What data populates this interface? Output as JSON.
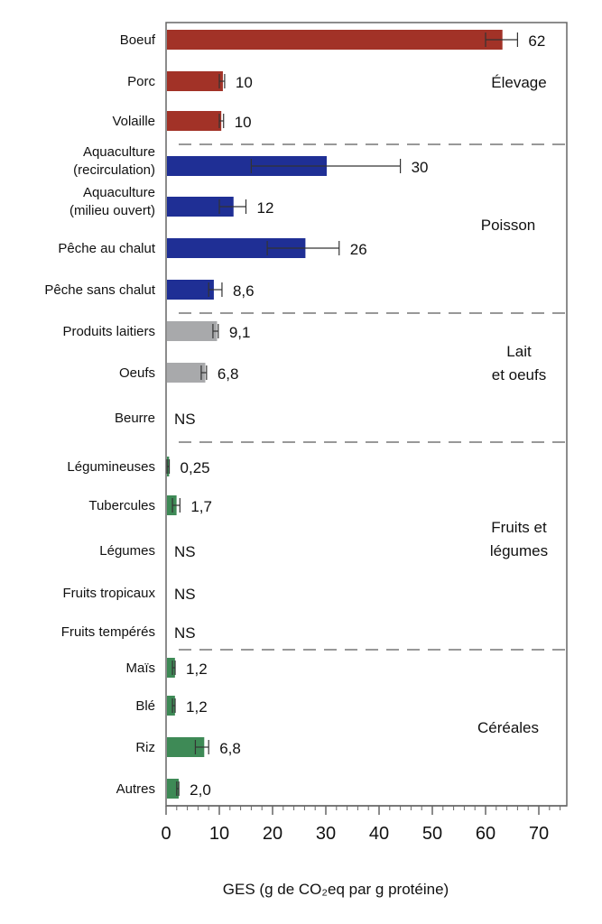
{
  "chart_data": {
    "type": "bar",
    "orientation": "horizontal",
    "title": "",
    "xlabel": "GES (g de CO₂eq par g protéine)",
    "ylabel": "",
    "xlim": [
      0,
      75
    ],
    "xticks": [
      0,
      10,
      20,
      30,
      40,
      50,
      60,
      70
    ],
    "grid": false,
    "colors": {
      "Élevage": "#a23227",
      "Poisson": "#1f2f95",
      "Lait et oeufs": "#a8a9ab",
      "Fruits et légumes": "#3e8a56",
      "Céréales": "#3e8a56"
    },
    "groups": [
      {
        "name": "Élevage",
        "label_lines": [
          "Élevage"
        ]
      },
      {
        "name": "Poisson",
        "label_lines": [
          "Poisson"
        ]
      },
      {
        "name": "Lait et oeufs",
        "label_lines": [
          "Lait",
          "et oeufs"
        ]
      },
      {
        "name": "Fruits et légumes",
        "label_lines": [
          "Fruits et",
          "légumes"
        ]
      },
      {
        "name": "Céréales",
        "label_lines": [
          "Céréales"
        ]
      }
    ],
    "categories": [
      {
        "label_lines": [
          "Boeuf"
        ],
        "group": "Élevage",
        "value": 62,
        "bar": 63,
        "err": [
          60,
          66
        ],
        "label": "62"
      },
      {
        "label_lines": [
          "Porc"
        ],
        "group": "Élevage",
        "value": 10,
        "bar": 10.5,
        "err": [
          10,
          11
        ],
        "label": "10"
      },
      {
        "label_lines": [
          "Volaille"
        ],
        "group": "Élevage",
        "value": 10,
        "bar": 10.2,
        "err": [
          10,
          10.8
        ],
        "label": "10"
      },
      {
        "label_lines": [
          "Aquaculture",
          "(recirculation)"
        ],
        "group": "Poisson",
        "value": 30,
        "bar": 30,
        "err": [
          16,
          44
        ],
        "label": "30"
      },
      {
        "label_lines": [
          "Aquaculture",
          "(milieu ouvert)"
        ],
        "group": "Poisson",
        "value": 12,
        "bar": 12.5,
        "err": [
          10,
          15
        ],
        "label": "12"
      },
      {
        "label_lines": [
          "Pêche au chalut"
        ],
        "group": "Poisson",
        "value": 26,
        "bar": 26,
        "err": [
          19,
          32.5
        ],
        "label": "26"
      },
      {
        "label_lines": [
          "Pêche sans chalut"
        ],
        "group": "Poisson",
        "value": 8.6,
        "bar": 8.8,
        "err": [
          8,
          10.5
        ],
        "label": "8,6"
      },
      {
        "label_lines": [
          "Produits laitiers"
        ],
        "group": "Lait et oeufs",
        "value": 9.1,
        "bar": 9.4,
        "err": [
          8.8,
          9.8
        ],
        "label": "9,1"
      },
      {
        "label_lines": [
          "Oeufs"
        ],
        "group": "Lait et oeufs",
        "value": 6.8,
        "bar": 7.2,
        "err": [
          6.6,
          7.6
        ],
        "label": "6,8"
      },
      {
        "label_lines": [
          "Beurre"
        ],
        "group": "Lait et oeufs",
        "value": null,
        "label": "NS"
      },
      {
        "label_lines": [
          "Légumineuses"
        ],
        "group": "Fruits et légumes",
        "value": 0.25,
        "bar": 0.4,
        "err": [
          0.2,
          0.6
        ],
        "label": "0,25"
      },
      {
        "label_lines": [
          "Tubercules"
        ],
        "group": "Fruits et légumes",
        "value": 1.7,
        "bar": 1.8,
        "err": [
          1.2,
          2.6
        ],
        "label": "1,7"
      },
      {
        "label_lines": [
          "Légumes"
        ],
        "group": "Fruits et légumes",
        "value": null,
        "label": "NS"
      },
      {
        "label_lines": [
          "Fruits tropicaux"
        ],
        "group": "Fruits et légumes",
        "value": null,
        "label": "NS"
      },
      {
        "label_lines": [
          "Fruits tempérés"
        ],
        "group": "Fruits et légumes",
        "value": null,
        "label": "NS"
      },
      {
        "label_lines": [
          "Maïs"
        ],
        "group": "Céréales",
        "value": 1.2,
        "bar": 1.5,
        "err": [
          1.2,
          1.7
        ],
        "label": "1,2"
      },
      {
        "label_lines": [
          "Blé"
        ],
        "group": "Céréales",
        "value": 1.2,
        "bar": 1.5,
        "err": [
          1.2,
          1.7
        ],
        "label": "1,2"
      },
      {
        "label_lines": [
          "Riz"
        ],
        "group": "Céréales",
        "value": 6.8,
        "bar": 7,
        "err": [
          5.5,
          8
        ],
        "label": "6,8"
      },
      {
        "label_lines": [
          "Autres"
        ],
        "group": "Céréales",
        "value": 2.0,
        "bar": 2.2,
        "err": [
          2.0,
          2.4
        ],
        "label": "2,0"
      }
    ]
  }
}
